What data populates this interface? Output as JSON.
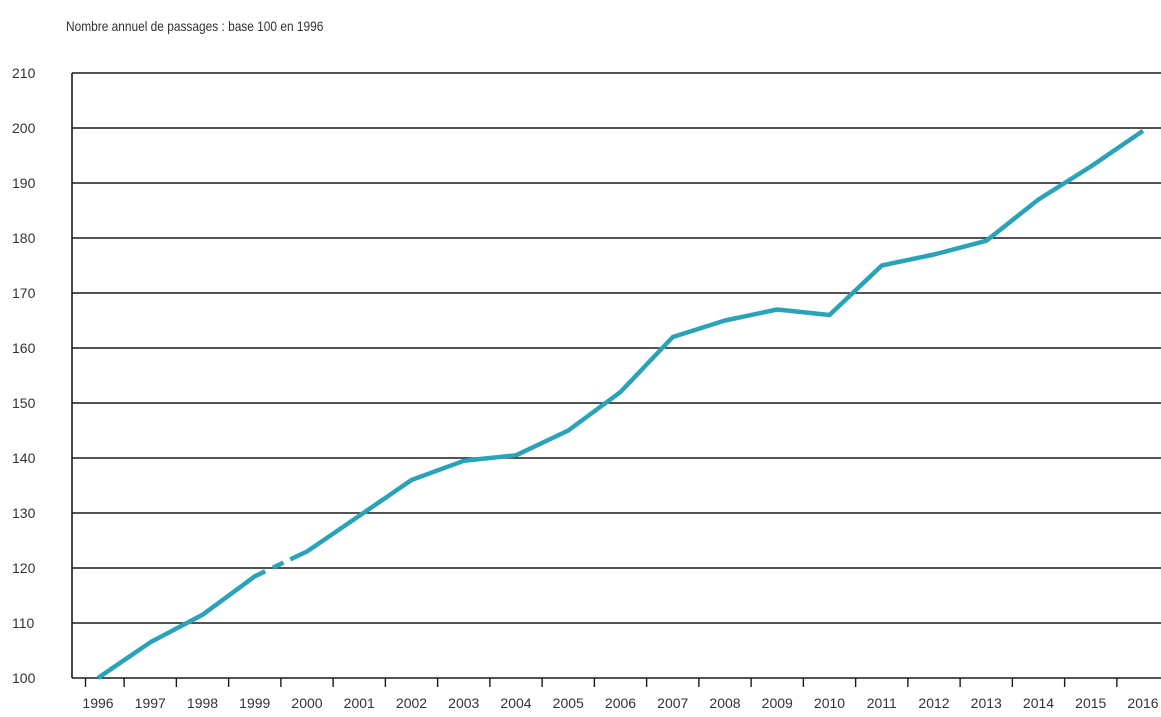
{
  "chart_data": {
    "type": "line",
    "title": "Nombre annuel de passages : base 100 en 1996",
    "xlabel": "",
    "ylabel": "",
    "ylim": [
      100,
      210
    ],
    "yticks": [
      100,
      110,
      120,
      130,
      140,
      150,
      160,
      170,
      180,
      190,
      200,
      210
    ],
    "categories": [
      "1996",
      "1997",
      "1998",
      "1999",
      "2000",
      "2001",
      "2002",
      "2003",
      "2004",
      "2005",
      "2006",
      "2007",
      "2008",
      "2009",
      "2010",
      "2011",
      "2012",
      "2013",
      "2014",
      "2015",
      "2016"
    ],
    "series": [
      {
        "color": "#2aa3b8",
        "values": [
          100,
          106.5,
          111.5,
          118.5,
          123,
          129.5,
          136,
          139.5,
          140.5,
          145,
          152,
          162,
          165,
          167,
          166,
          175,
          177,
          179.5,
          187,
          193,
          199.5
        ],
        "gap_between": [
          "1999",
          "2000"
        ]
      }
    ],
    "grid": true,
    "legend": "none"
  }
}
